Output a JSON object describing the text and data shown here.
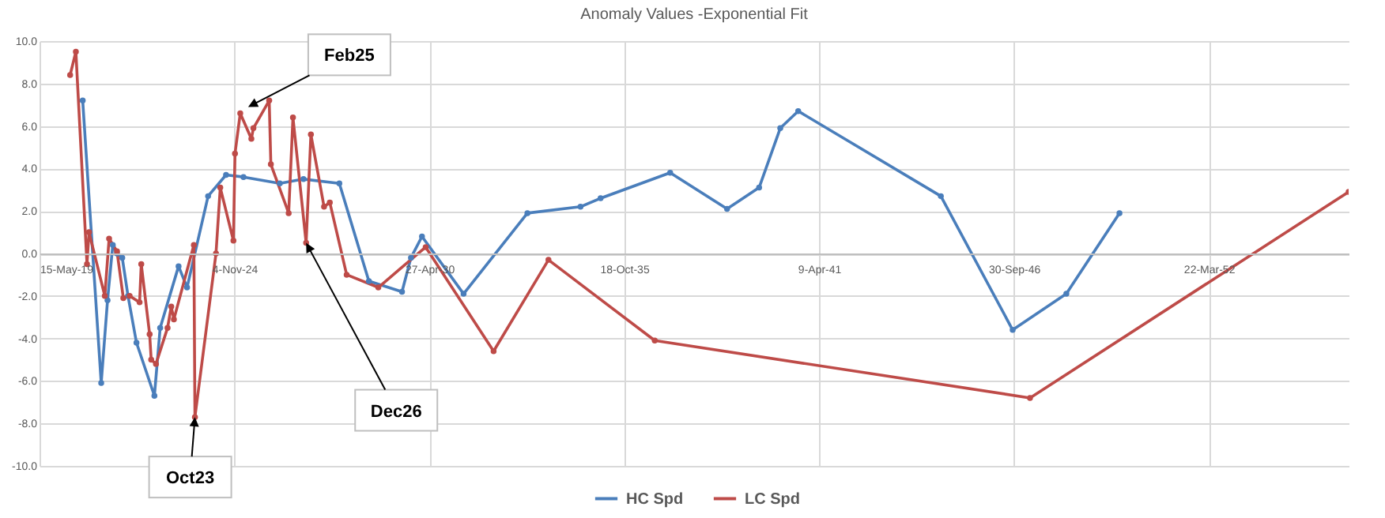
{
  "chart_data": {
    "type": "line",
    "title": "Anomaly Values -Exponential Fit",
    "xlim": [
      "2019-05-15",
      "2056-02-25"
    ],
    "xticks": [
      {
        "value": "2019-05-15",
        "label": "15-May-19"
      },
      {
        "value": "2024-11-04",
        "label": "4-Nov-24"
      },
      {
        "value": "2030-04-27",
        "label": "27-Apr-30"
      },
      {
        "value": "2035-10-18",
        "label": "18-Oct-35"
      },
      {
        "value": "2041-04-09",
        "label": "9-Apr-41"
      },
      {
        "value": "2046-09-30",
        "label": "30-Sep-46"
      },
      {
        "value": "2052-03-22",
        "label": "22-Mar-52"
      }
    ],
    "ylim": [
      -10,
      10
    ],
    "yticks": [
      {
        "value": -10,
        "label": "-10.0"
      },
      {
        "value": -8,
        "label": "-8.0"
      },
      {
        "value": -6,
        "label": "-6.0"
      },
      {
        "value": -4,
        "label": "-4.0"
      },
      {
        "value": -2,
        "label": "-2.0"
      },
      {
        "value": 0,
        "label": "0.0"
      },
      {
        "value": 2,
        "label": "2.0"
      },
      {
        "value": 4,
        "label": "4.0"
      },
      {
        "value": 6,
        "label": "6.0"
      },
      {
        "value": 8,
        "label": "8.0"
      },
      {
        "value": 10,
        "label": "10.0"
      }
    ],
    "grid": true,
    "legend": "bottom",
    "marker": "circle",
    "line_style": "solid",
    "series": [
      {
        "name": "HC Spd",
        "color": "#4a7ebb",
        "x": [
          "2020-07-31",
          "2021-02-06",
          "2021-04-12",
          "2021-06-05",
          "2021-07-18",
          "2021-09-10",
          "2021-11-08",
          "2022-02-03",
          "2022-08-06",
          "2022-10-04",
          "2023-04-11",
          "2023-07-07",
          "2024-02-08",
          "2024-08-10",
          "2025-02-05",
          "2026-02-13",
          "2026-10-14",
          "2027-10-17",
          "2028-08-15",
          "2029-07-21",
          "2029-10-21",
          "2030-02-11",
          "2031-04-14",
          "2033-01-28",
          "2034-07-27",
          "2035-02-18",
          "2037-02-01",
          "2038-09-08",
          "2039-08-03",
          "2040-03-07",
          "2040-09-07",
          "2044-09-10",
          "2046-09-17",
          "2048-03-21",
          "2049-09-17"
        ],
        "values": [
          7.2,
          -6.1,
          -2.2,
          0.4,
          0.0,
          -0.2,
          -2.0,
          -4.2,
          -6.7,
          -3.5,
          -0.6,
          -1.6,
          2.7,
          3.7,
          3.6,
          3.3,
          3.5,
          3.3,
          -1.3,
          -1.8,
          -0.2,
          0.8,
          -1.9,
          1.9,
          2.2,
          2.6,
          3.8,
          2.1,
          3.1,
          5.9,
          6.7,
          2.7,
          -3.6,
          -1.9,
          1.9
        ]
      },
      {
        "name": "LC Spd",
        "color": "#be4b48",
        "x": [
          "2020-03-24",
          "2020-05-22",
          "2020-09-13",
          "2020-10-04",
          "2021-03-15",
          "2021-04-28",
          "2021-07-18",
          "2021-09-21",
          "2021-11-25",
          "2022-03-07",
          "2022-03-24",
          "2022-06-18",
          "2022-07-04",
          "2022-08-22",
          "2022-12-19",
          "2023-01-26",
          "2023-02-22",
          "2023-09-15",
          "2023-09-26",
          "2024-04-29",
          "2024-06-12",
          "2024-10-25",
          "2024-11-10",
          "2025-01-03",
          "2025-04-27",
          "2025-05-18",
          "2025-10-27",
          "2025-11-13",
          "2026-05-15",
          "2026-06-28",
          "2026-11-10",
          "2026-12-29",
          "2027-05-13",
          "2027-07-11",
          "2027-12-31",
          "2028-11-20",
          "2030-03-21",
          "2032-02-16",
          "2033-09-01",
          "2036-08-27",
          "2047-03-14",
          "2056-02-25"
        ],
        "values": [
          8.4,
          9.5,
          -0.5,
          1.0,
          -2.0,
          0.7,
          0.1,
          -2.1,
          -2.0,
          -2.3,
          -0.5,
          -3.8,
          -5.0,
          -5.2,
          -3.5,
          -2.5,
          -3.1,
          0.4,
          -7.7,
          0.0,
          3.1,
          0.6,
          4.7,
          6.6,
          5.4,
          5.9,
          7.2,
          4.2,
          1.9,
          6.4,
          0.5,
          5.6,
          2.2,
          2.4,
          -1.0,
          -1.6,
          0.3,
          -4.6,
          -0.3,
          -4.1,
          -6.8,
          2.9
        ]
      }
    ],
    "annotations": [
      {
        "text": "Feb25",
        "x": "2025-03-25",
        "y": 6.9
      },
      {
        "text": "Dec26",
        "x": "2026-11-10",
        "y": 0.5
      },
      {
        "text": "Oct23",
        "x": "2023-09-26",
        "y": -7.7
      }
    ]
  }
}
